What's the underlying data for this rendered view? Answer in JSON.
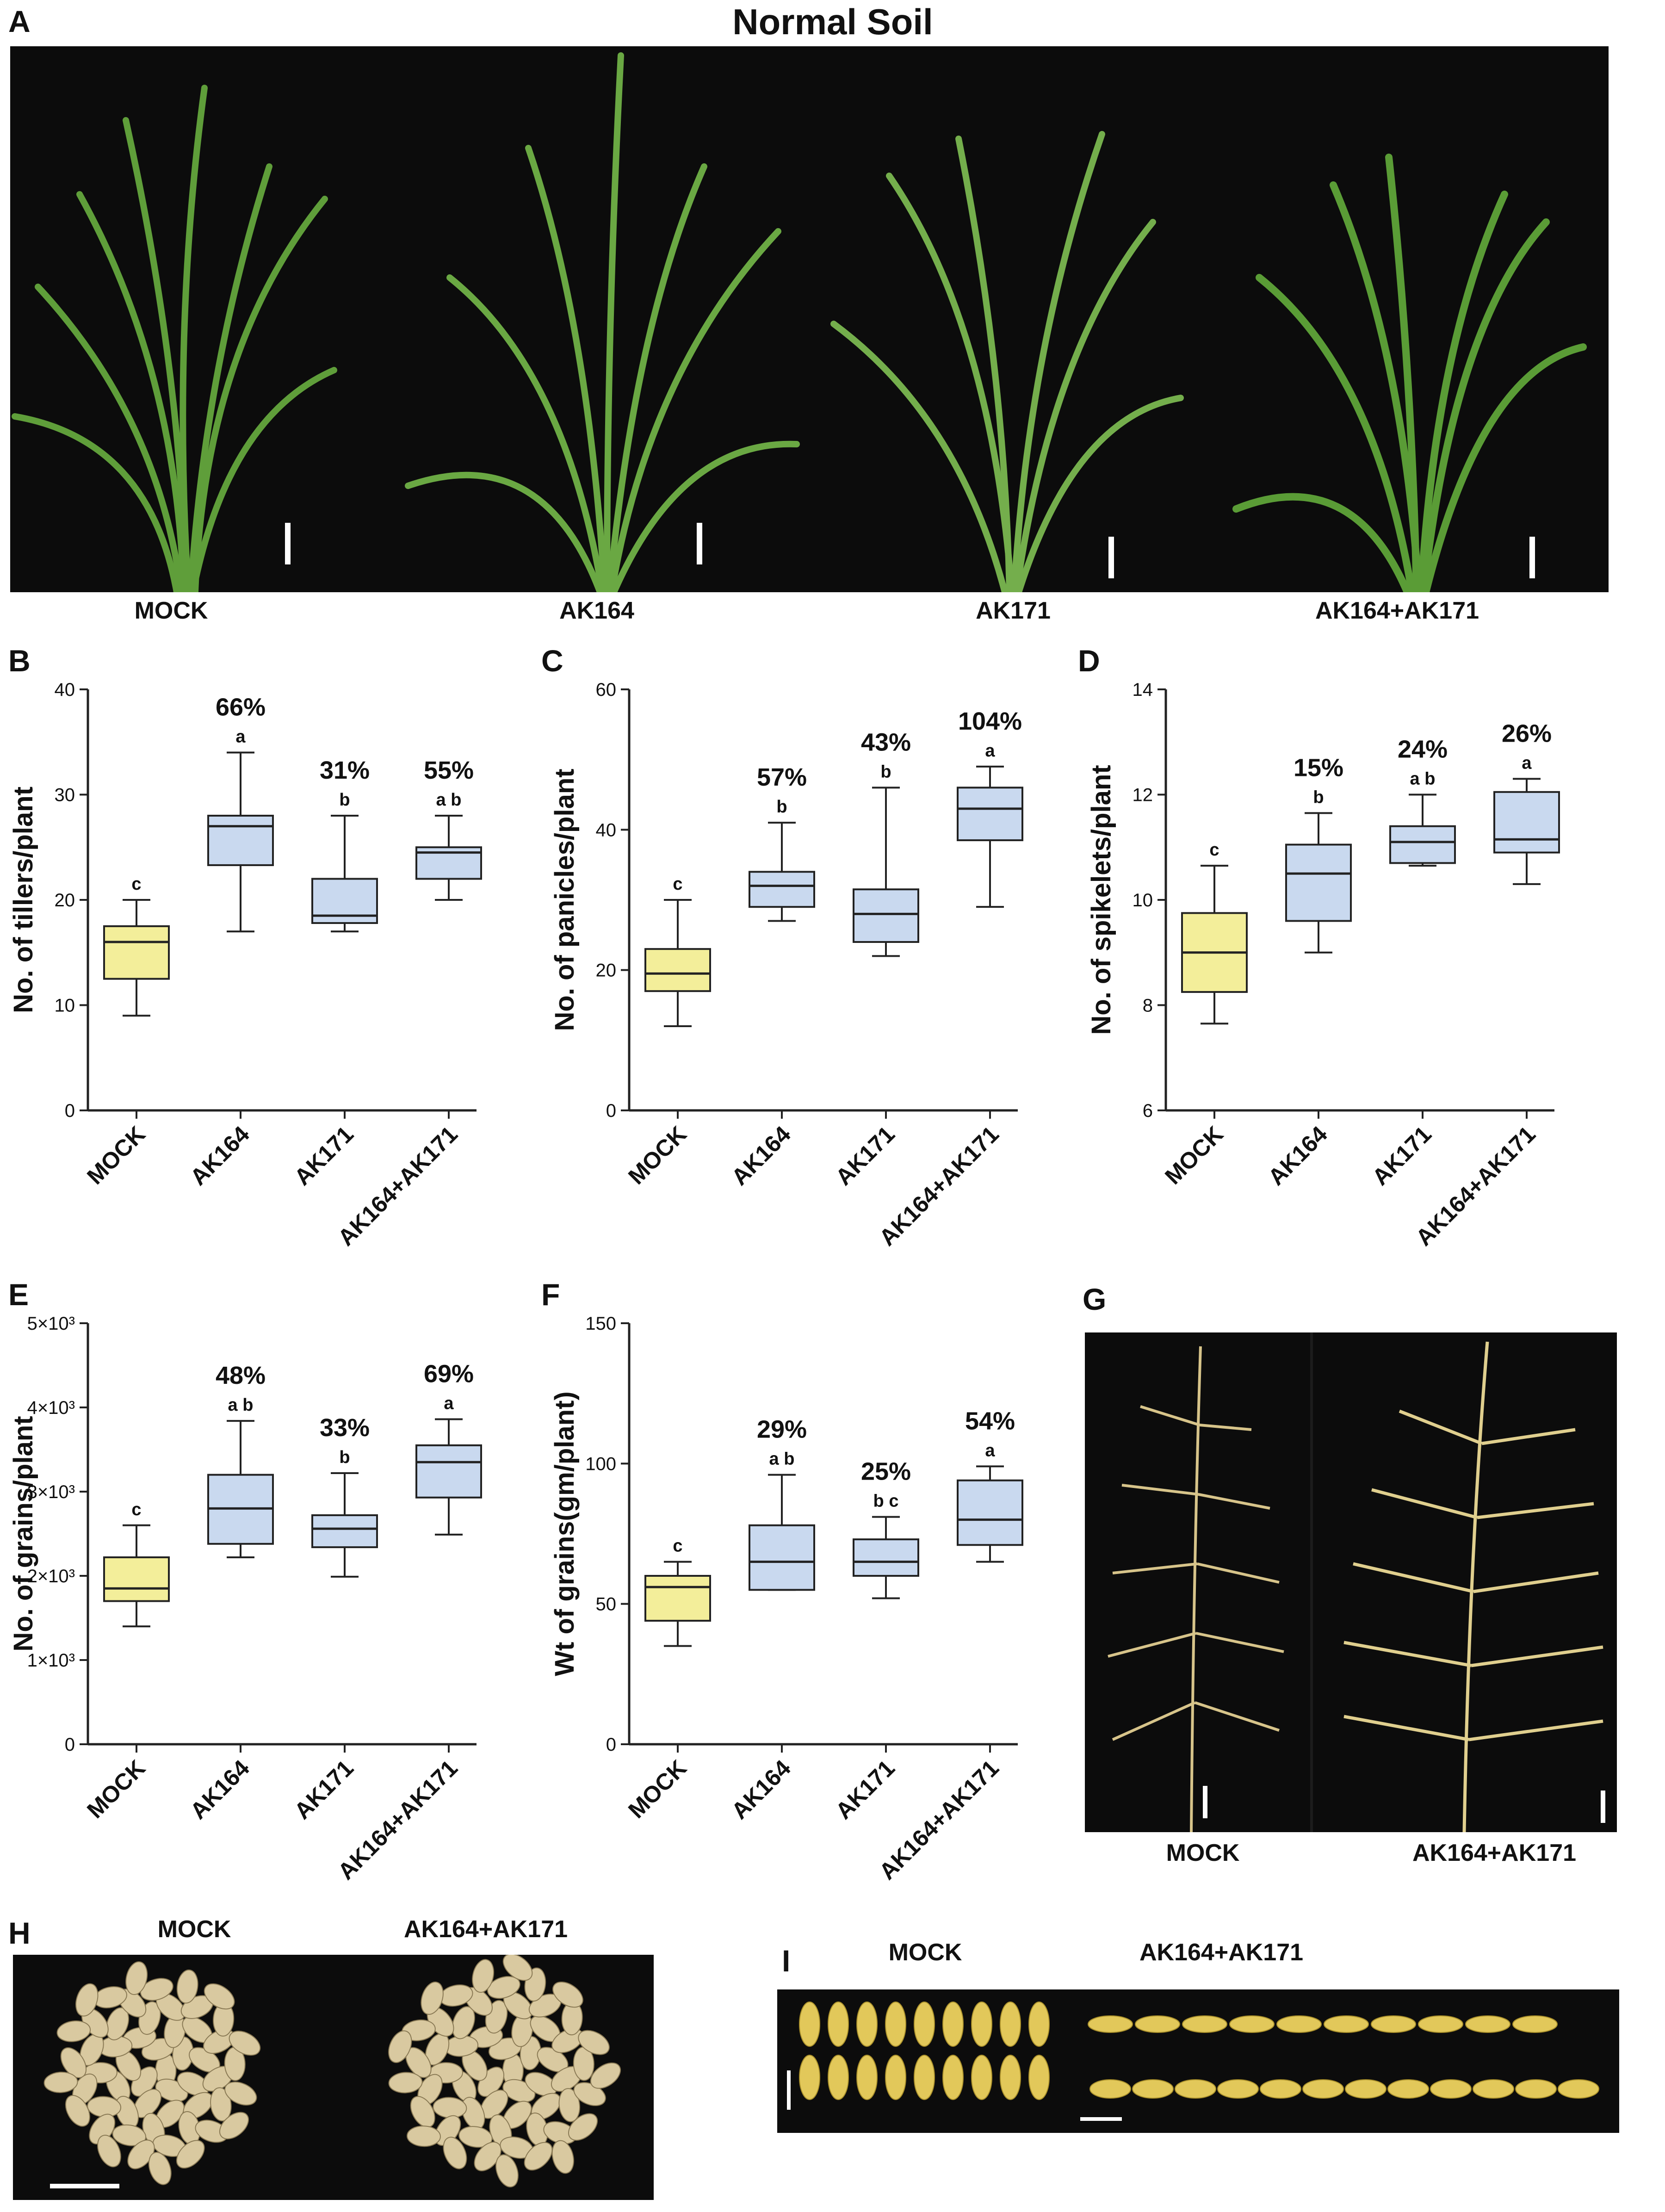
{
  "figure_title": "Normal Soil",
  "panel_labels": {
    "A": "A",
    "B": "B",
    "C": "C",
    "D": "D",
    "E": "E",
    "F": "F",
    "G": "G",
    "H": "H",
    "I": "I"
  },
  "photo_labels": {
    "A": [
      "MOCK",
      "AK164",
      "AK171",
      "AK164+AK171"
    ],
    "G": [
      "MOCK",
      "AK164+AK171"
    ],
    "H": [
      "MOCK",
      "AK164+AK171"
    ],
    "I": [
      "MOCK",
      "AK164+AK171"
    ]
  },
  "colors": {
    "mock_fill": "#f3ee9a",
    "treat_fill": "#c9d9ef",
    "photo_bg": "#0c0c0c",
    "leaf": "#5f9e3a",
    "grain": "#e2c85a",
    "rice": "#d9c9a0"
  },
  "chart_data": [
    {
      "panel": "B",
      "type": "box",
      "ylabel": "No. of tillers/plant",
      "ylim": [
        0,
        40
      ],
      "yticks": [
        0,
        10,
        20,
        30,
        40
      ],
      "ytick_labels": [
        "0",
        "10",
        "20",
        "30",
        "40"
      ],
      "categories": [
        "MOCK",
        "AK164",
        "AK171",
        "AK164+AK171"
      ],
      "boxes": [
        {
          "min": 9,
          "q1": 12.5,
          "median": 16,
          "q3": 17.5,
          "max": 20
        },
        {
          "min": 17,
          "q1": 23.3,
          "median": 27,
          "q3": 28,
          "max": 34
        },
        {
          "min": 17,
          "q1": 17.8,
          "median": 18.5,
          "q3": 22,
          "max": 28
        },
        {
          "min": 20,
          "q1": 22,
          "median": 24.5,
          "q3": 25,
          "max": 28
        }
      ],
      "letters": [
        "c",
        "a",
        "b",
        "a b"
      ],
      "percents": [
        "",
        "66%",
        "31%",
        "55%"
      ]
    },
    {
      "panel": "C",
      "type": "box",
      "ylabel": "No. of panicles/plant",
      "ylim": [
        0,
        60
      ],
      "yticks": [
        0,
        20,
        40,
        60
      ],
      "ytick_labels": [
        "0",
        "20",
        "40",
        "60"
      ],
      "categories": [
        "MOCK",
        "AK164",
        "AK171",
        "AK164+AK171"
      ],
      "boxes": [
        {
          "min": 12,
          "q1": 17,
          "median": 19.5,
          "q3": 23,
          "max": 30
        },
        {
          "min": 27,
          "q1": 29,
          "median": 32,
          "q3": 34,
          "max": 41
        },
        {
          "min": 22,
          "q1": 24,
          "median": 28,
          "q3": 31.5,
          "max": 46
        },
        {
          "min": 29,
          "q1": 38.5,
          "median": 43,
          "q3": 46,
          "max": 49
        }
      ],
      "letters": [
        "c",
        "b",
        "b",
        "a"
      ],
      "percents": [
        "",
        "57%",
        "43%",
        "104%"
      ]
    },
    {
      "panel": "D",
      "type": "box",
      "ylabel": "No. of spikelets/plant",
      "ylim": [
        6,
        14
      ],
      "yticks": [
        6,
        8,
        10,
        12,
        14
      ],
      "ytick_labels": [
        "6",
        "8",
        "10",
        "12",
        "14"
      ],
      "categories": [
        "MOCK",
        "AK164",
        "AK171",
        "AK164+AK171"
      ],
      "boxes": [
        {
          "min": 7.65,
          "q1": 8.25,
          "median": 9,
          "q3": 9.75,
          "max": 10.65
        },
        {
          "min": 9,
          "q1": 9.6,
          "median": 10.5,
          "q3": 11.05,
          "max": 11.65
        },
        {
          "min": 10.65,
          "q1": 10.7,
          "median": 11.1,
          "q3": 11.4,
          "max": 12
        },
        {
          "min": 10.3,
          "q1": 10.9,
          "median": 11.15,
          "q3": 12.05,
          "max": 12.3
        }
      ],
      "letters": [
        "c",
        "b",
        "a b",
        "a"
      ],
      "percents": [
        "",
        "15%",
        "24%",
        "26%"
      ]
    },
    {
      "panel": "E",
      "type": "box",
      "ylabel": "No. of grains/plant",
      "ylim": [
        0,
        5000
      ],
      "yticks": [
        0,
        1000,
        2000,
        3000,
        4000,
        5000
      ],
      "ytick_labels": [
        "0",
        "1×10³",
        "2×10³",
        "3×10³",
        "4×10³",
        "5×10³"
      ],
      "categories": [
        "MOCK",
        "AK164",
        "AK171",
        "AK164+AK171"
      ],
      "boxes": [
        {
          "min": 1400,
          "q1": 1700,
          "median": 1850,
          "q3": 2220,
          "max": 2600
        },
        {
          "min": 2220,
          "q1": 2380,
          "median": 2800,
          "q3": 3200,
          "max": 3840
        },
        {
          "min": 1990,
          "q1": 2340,
          "median": 2560,
          "q3": 2720,
          "max": 3220
        },
        {
          "min": 2490,
          "q1": 2930,
          "median": 3350,
          "q3": 3550,
          "max": 3860
        }
      ],
      "letters": [
        "c",
        "a b",
        "b",
        "a"
      ],
      "percents": [
        "",
        "48%",
        "33%",
        "69%"
      ]
    },
    {
      "panel": "F",
      "type": "box",
      "ylabel": "Wt of grains(gm/plant)",
      "ylim": [
        0,
        150
      ],
      "yticks": [
        0,
        50,
        100,
        150
      ],
      "ytick_labels": [
        "0",
        "50",
        "100",
        "150"
      ],
      "categories": [
        "MOCK",
        "AK164",
        "AK171",
        "AK164+AK171"
      ],
      "boxes": [
        {
          "min": 35,
          "q1": 44,
          "median": 56,
          "q3": 60,
          "max": 65
        },
        {
          "min": 55,
          "q1": 55,
          "median": 65,
          "q3": 78,
          "max": 96
        },
        {
          "min": 52,
          "q1": 60,
          "median": 65,
          "q3": 73,
          "max": 81
        },
        {
          "min": 65,
          "q1": 71,
          "median": 80,
          "q3": 94,
          "max": 99
        }
      ],
      "letters": [
        "c",
        "a b",
        "b c",
        "a"
      ],
      "percents": [
        "",
        "29%",
        "25%",
        "54%"
      ]
    }
  ]
}
